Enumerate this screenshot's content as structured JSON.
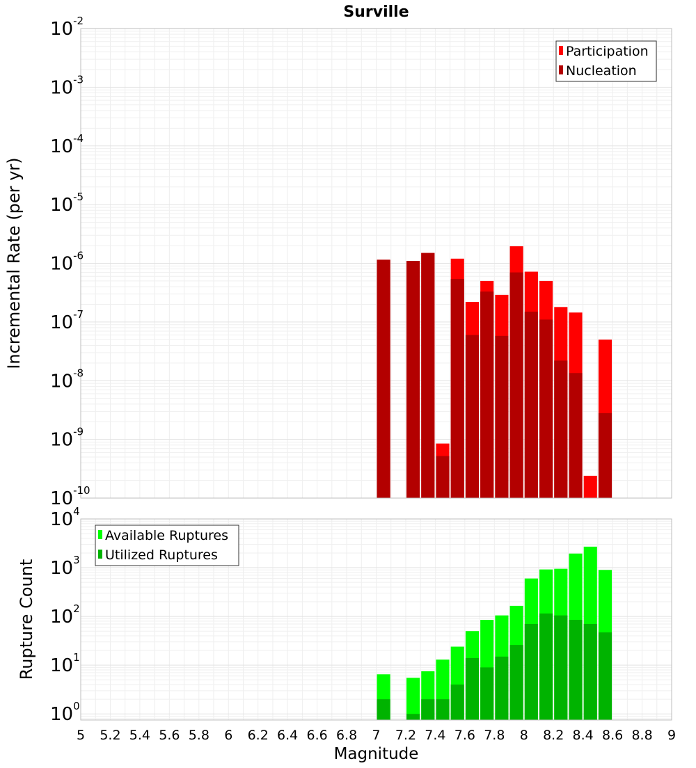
{
  "chart_data": [
    {
      "type": "bar",
      "title": "Surville",
      "ylabel": "Incremental Rate (per yr)",
      "xlabel": "",
      "y_scale": "log",
      "ylim": [
        1e-10,
        0.01
      ],
      "xlim": [
        5,
        9
      ],
      "bar_width": 0.09,
      "grid": true,
      "legend_position": "top-right",
      "y_ticks": [
        {
          "base": "10",
          "exp": "-10",
          "value": 1e-10
        },
        {
          "base": "10",
          "exp": "-9",
          "value": 1e-09
        },
        {
          "base": "10",
          "exp": "-8",
          "value": 1e-08
        },
        {
          "base": "10",
          "exp": "-7",
          "value": 1e-07
        },
        {
          "base": "10",
          "exp": "-6",
          "value": 1e-06
        },
        {
          "base": "10",
          "exp": "-5",
          "value": 1e-05
        },
        {
          "base": "10",
          "exp": "-4",
          "value": 0.0001
        },
        {
          "base": "10",
          "exp": "-3",
          "value": 0.001
        },
        {
          "base": "10",
          "exp": "-2",
          "value": 0.01
        }
      ],
      "series": [
        {
          "name": "Participation",
          "color": "#ff0000",
          "x": [
            7.05,
            7.25,
            7.35,
            7.45,
            7.55,
            7.65,
            7.75,
            7.85,
            7.95,
            8.05,
            8.15,
            8.25,
            8.35,
            8.45,
            8.55
          ],
          "values": [
            1.15e-06,
            1.1e-06,
            1.5e-06,
            8.5e-10,
            1.2e-06,
            2.2e-07,
            5e-07,
            2.9e-07,
            1.95e-06,
            7.2e-07,
            5e-07,
            1.8e-07,
            1.45e-07,
            2.4e-10,
            5e-08
          ]
        },
        {
          "name": "Nucleation",
          "color": "#b30000",
          "x": [
            7.05,
            7.25,
            7.35,
            7.45,
            7.55,
            7.65,
            7.75,
            7.85,
            7.95,
            8.05,
            8.15,
            8.25,
            8.35,
            8.55
          ],
          "values": [
            1.15e-06,
            1.1e-06,
            1.5e-06,
            5.2e-10,
            5.4e-07,
            6e-08,
            3.3e-07,
            5.8e-08,
            7e-07,
            1.5e-07,
            1.1e-07,
            2.2e-08,
            1.35e-08,
            2.8e-09
          ]
        }
      ]
    },
    {
      "type": "bar",
      "title": "",
      "ylabel": "Rupture Count",
      "xlabel": "Magnitude",
      "y_scale": "log",
      "ylim": [
        0.75,
        10000
      ],
      "xlim": [
        5,
        9
      ],
      "bar_width": 0.09,
      "grid": true,
      "legend_position": "top-left",
      "x_ticks": [
        "5",
        "5.2",
        "5.4",
        "5.6",
        "5.8",
        "6",
        "6.2",
        "6.4",
        "6.6",
        "6.8",
        "7",
        "7.2",
        "7.4",
        "7.6",
        "7.8",
        "8",
        "8.2",
        "8.4",
        "8.6",
        "8.8",
        "9"
      ],
      "y_ticks": [
        {
          "base": "10",
          "exp": "0",
          "value": 1
        },
        {
          "base": "10",
          "exp": "1",
          "value": 10
        },
        {
          "base": "10",
          "exp": "2",
          "value": 100
        },
        {
          "base": "10",
          "exp": "3",
          "value": 1000
        },
        {
          "base": "10",
          "exp": "4",
          "value": 10000
        }
      ],
      "series": [
        {
          "name": "Available Ruptures",
          "color": "#00ff00",
          "x": [
            7.05,
            7.25,
            7.35,
            7.45,
            7.55,
            7.65,
            7.75,
            7.85,
            7.95,
            8.05,
            8.15,
            8.25,
            8.35,
            8.45,
            8.55
          ],
          "values": [
            6.5,
            5.5,
            7.5,
            13,
            24,
            50,
            85,
            105,
            165,
            600,
            920,
            950,
            1950,
            2700,
            900
          ]
        },
        {
          "name": "Utilized Ruptures",
          "color": "#00b300",
          "x": [
            7.05,
            7.25,
            7.35,
            7.45,
            7.55,
            7.65,
            7.75,
            7.85,
            7.95,
            8.05,
            8.15,
            8.25,
            8.35,
            8.45,
            8.55
          ],
          "values": [
            2,
            1,
            2,
            2,
            4,
            14,
            9,
            15,
            26,
            70,
            115,
            105,
            85,
            70,
            47
          ]
        }
      ]
    }
  ]
}
